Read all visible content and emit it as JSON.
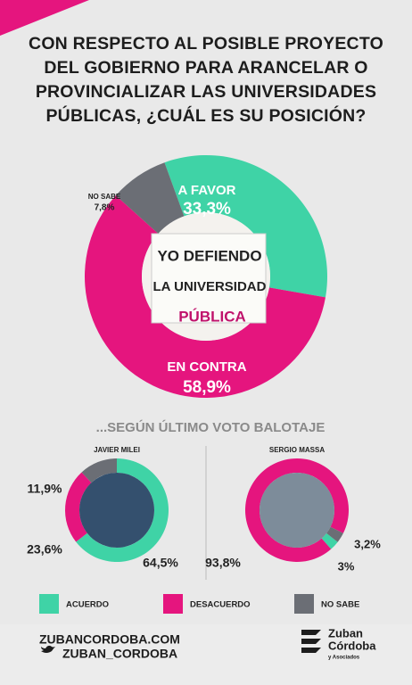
{
  "chart_data": [
    {
      "type": "pie",
      "title": "CON RESPECTO AL POSIBLE PROYECTO DEL GOBIERNO PARA ARANCELAR O PROVINCIALIZAR LAS UNIVERSIDADES PÚBLICAS, ¿CUÁL ES SU POSICIÓN?",
      "categories": [
        "A FAVOR",
        "EN CONTRA",
        "NO SABE"
      ],
      "values": [
        33.3,
        58.9,
        7.8
      ],
      "value_labels": [
        "33,3%",
        "58,9%",
        "7,8%"
      ],
      "colors": [
        "#3fd3a6",
        "#e5157e",
        "#6b6e75"
      ]
    },
    {
      "type": "pie",
      "title": "JAVIER MILEI",
      "categories": [
        "ACUERDO",
        "DESACUERDO",
        "NO SABE"
      ],
      "values": [
        64.5,
        23.6,
        11.9
      ],
      "value_labels": [
        "64,5%",
        "23,6%",
        "11,9%"
      ],
      "colors": [
        "#3fd3a6",
        "#e5157e",
        "#6b6e75"
      ]
    },
    {
      "type": "pie",
      "title": "SERGIO MASSA",
      "categories": [
        "ACUERDO",
        "DESACUERDO",
        "NO SABE"
      ],
      "values": [
        3,
        93.8,
        3.2
      ],
      "value_labels": [
        "3%",
        "93,8%",
        "3,2%"
      ],
      "colors": [
        "#3fd3a6",
        "#e5157e",
        "#6b6e75"
      ]
    }
  ],
  "section_title": "...SEGÚN ÚLTIMO VOTO BALOTAJE",
  "photo_sign": [
    "YO DEFIENDO",
    "LA UNIVERSIDAD",
    "PÚBLICA"
  ],
  "footer": {
    "website": "ZUBANCORDOBA.COM",
    "twitter": "ZUBAN_CORDOBA",
    "logo": [
      "Zuban",
      "Córdoba",
      "y Asociados"
    ]
  }
}
